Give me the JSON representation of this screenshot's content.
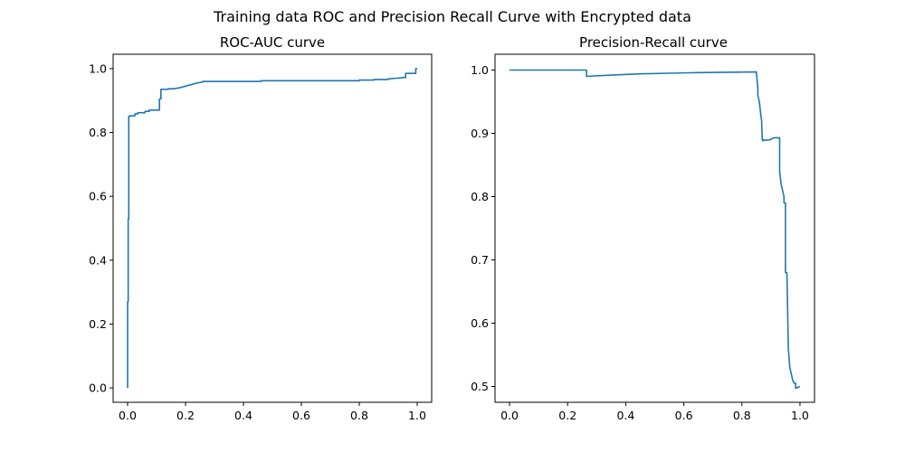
{
  "figure_title": "Training data ROC and Precision Recall Curve with Encrypted data",
  "colors": {
    "series": "#1f77b4",
    "axes": "#000000",
    "background": "#ffffff"
  },
  "chart_data": [
    {
      "type": "line",
      "title": "ROC-AUC curve",
      "xlabel": "",
      "ylabel": "",
      "xlim": [
        -0.05,
        1.05
      ],
      "ylim": [
        -0.045,
        1.045
      ],
      "xticks": [
        0.0,
        0.2,
        0.4,
        0.6,
        0.8,
        1.0
      ],
      "xtick_labels": [
        "0.0",
        "0.2",
        "0.4",
        "0.6",
        "0.8",
        "1.0"
      ],
      "yticks": [
        0.0,
        0.2,
        0.4,
        0.6,
        0.8,
        1.0
      ],
      "ytick_labels": [
        "0.0",
        "0.2",
        "0.4",
        "0.6",
        "0.8",
        "1.0"
      ],
      "grid": false,
      "legend": "none",
      "series": [
        {
          "x": [
            0.0,
            0.0,
            0.002,
            0.002,
            0.004,
            0.004,
            0.006,
            0.006,
            0.025,
            0.025,
            0.035,
            0.035,
            0.06,
            0.06,
            0.075,
            0.075,
            0.11,
            0.11,
            0.115,
            0.115,
            0.14,
            0.14,
            0.16,
            0.18,
            0.2,
            0.22,
            0.24,
            0.26,
            0.26,
            0.45,
            0.46,
            0.46,
            0.8,
            0.8,
            0.85,
            0.85,
            0.9,
            0.9,
            0.93,
            0.95,
            0.96,
            0.96,
            0.995,
            0.995,
            1.0
          ],
          "y": [
            0.0,
            0.27,
            0.27,
            0.53,
            0.53,
            0.85,
            0.85,
            0.852,
            0.852,
            0.858,
            0.858,
            0.862,
            0.862,
            0.866,
            0.866,
            0.87,
            0.87,
            0.905,
            0.905,
            0.935,
            0.935,
            0.937,
            0.937,
            0.94,
            0.945,
            0.95,
            0.955,
            0.958,
            0.96,
            0.96,
            0.96,
            0.962,
            0.962,
            0.964,
            0.964,
            0.966,
            0.966,
            0.968,
            0.97,
            0.972,
            0.972,
            0.985,
            0.985,
            1.0,
            1.0
          ]
        }
      ]
    },
    {
      "type": "line",
      "title": "Precision-Recall curve",
      "xlabel": "",
      "ylabel": "",
      "xlim": [
        -0.05,
        1.05
      ],
      "ylim": [
        0.475,
        1.025
      ],
      "xticks": [
        0.0,
        0.2,
        0.4,
        0.6,
        0.8,
        1.0
      ],
      "xtick_labels": [
        "0.0",
        "0.2",
        "0.4",
        "0.6",
        "0.8",
        "1.0"
      ],
      "yticks": [
        0.5,
        0.6,
        0.7,
        0.8,
        0.9,
        1.0
      ],
      "ytick_labels": [
        "0.5",
        "0.6",
        "0.7",
        "0.8",
        "0.9",
        "1.0"
      ],
      "grid": false,
      "legend": "none",
      "series": [
        {
          "x": [
            0.0,
            0.265,
            0.265,
            0.35,
            0.45,
            0.55,
            0.65,
            0.75,
            0.85,
            0.855,
            0.855,
            0.86,
            0.865,
            0.868,
            0.87,
            0.873,
            0.875,
            0.88,
            0.9,
            0.9,
            0.91,
            0.93,
            0.93,
            0.93,
            0.935,
            0.94,
            0.945,
            0.945,
            0.95,
            0.95,
            0.955,
            0.96,
            0.965,
            0.97,
            0.975,
            0.98,
            0.985,
            0.985,
            1.0
          ],
          "y": [
            1.0,
            1.0,
            0.99,
            0.992,
            0.994,
            0.995,
            0.996,
            0.9965,
            0.997,
            0.97,
            0.96,
            0.95,
            0.93,
            0.92,
            0.89,
            0.888,
            0.89,
            0.889,
            0.89,
            0.891,
            0.893,
            0.893,
            0.855,
            0.84,
            0.82,
            0.81,
            0.8,
            0.79,
            0.79,
            0.68,
            0.68,
            0.56,
            0.53,
            0.52,
            0.51,
            0.505,
            0.505,
            0.497,
            0.5
          ]
        }
      ]
    }
  ]
}
